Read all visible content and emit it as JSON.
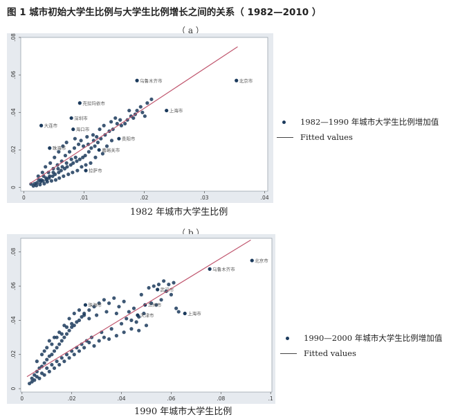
{
  "figure": {
    "title": "图 1  城市初始大学生比例与大学生比例增长之间的关系（ 1982—2010 ）",
    "panel_a_label": "（ a ）",
    "panel_b_label": "（ b ）"
  },
  "colors": {
    "points": "#1b3a5c",
    "fit": "#c0566e",
    "frame": "#9aa3ad",
    "plot_bg": "#ffffff",
    "outer_bg": "#e6eaef"
  },
  "chart_data": [
    {
      "type": "scatter",
      "xlabel": "1982 年城市大学生比例",
      "ylabel": "",
      "xlim": [
        -0.0005,
        0.0405
      ],
      "ylim": [
        -0.002,
        0.08
      ],
      "x_ticks": [
        "0",
        ".01",
        ".02",
        ".03",
        ".04"
      ],
      "x_tick_values": [
        0,
        0.01,
        0.02,
        0.03,
        0.04
      ],
      "y_ticks": [
        "0",
        ".02",
        ".04",
        ".06",
        ".08"
      ],
      "y_tick_values": [
        0,
        0.02,
        0.04,
        0.06,
        0.08
      ],
      "legend": {
        "position": "right",
        "entries": [
          "1982—1990 年城市大学生比例增加值",
          "Fitted values"
        ]
      },
      "fit_line": {
        "x": [
          0.001,
          0.0355
        ],
        "y": [
          0.002,
          0.075
        ]
      },
      "labeled_points": [
        {
          "label": "北京市",
          "x": 0.0353,
          "y": 0.057
        },
        {
          "label": "乌鲁木齐市",
          "x": 0.0188,
          "y": 0.057
        },
        {
          "label": "上海市",
          "x": 0.0237,
          "y": 0.041
        },
        {
          "label": "克拉玛依市",
          "x": 0.0093,
          "y": 0.045
        },
        {
          "label": "大连市",
          "x": 0.0029,
          "y": 0.033
        },
        {
          "label": "深圳市",
          "x": 0.0079,
          "y": 0.037
        },
        {
          "label": "海口市",
          "x": 0.0082,
          "y": 0.031
        },
        {
          "label": "珠海市",
          "x": 0.0043,
          "y": 0.021
        },
        {
          "label": "贵阳市",
          "x": 0.0158,
          "y": 0.026
        },
        {
          "label": "嘉峪关市",
          "x": 0.0125,
          "y": 0.02
        },
        {
          "label": "拉萨市",
          "x": 0.0103,
          "y": 0.009
        }
      ],
      "points": [
        [
          0.0194,
          0.043
        ],
        [
          0.0188,
          0.041
        ],
        [
          0.0185,
          0.039
        ],
        [
          0.0178,
          0.038
        ],
        [
          0.0172,
          0.036
        ],
        [
          0.0168,
          0.034
        ],
        [
          0.0162,
          0.033
        ],
        [
          0.0155,
          0.034
        ],
        [
          0.0148,
          0.031
        ],
        [
          0.0142,
          0.03
        ],
        [
          0.0135,
          0.028
        ],
        [
          0.0128,
          0.026
        ],
        [
          0.0123,
          0.024
        ],
        [
          0.0118,
          0.022
        ],
        [
          0.0112,
          0.021
        ],
        [
          0.0108,
          0.019
        ],
        [
          0.0102,
          0.017
        ],
        [
          0.0098,
          0.016
        ],
        [
          0.0093,
          0.015
        ],
        [
          0.0088,
          0.014
        ],
        [
          0.0082,
          0.013
        ],
        [
          0.0078,
          0.012
        ],
        [
          0.0072,
          0.011
        ],
        [
          0.0068,
          0.01
        ],
        [
          0.0062,
          0.009
        ],
        [
          0.0058,
          0.008
        ],
        [
          0.0052,
          0.007
        ],
        [
          0.0048,
          0.006
        ],
        [
          0.0042,
          0.005
        ],
        [
          0.0038,
          0.004
        ],
        [
          0.0032,
          0.0035
        ],
        [
          0.0028,
          0.003
        ],
        [
          0.0022,
          0.0025
        ],
        [
          0.0018,
          0.002
        ],
        [
          0.0012,
          0.0018
        ],
        [
          0.0024,
          0.006
        ],
        [
          0.0031,
          0.008
        ],
        [
          0.0036,
          0.011
        ],
        [
          0.0044,
          0.013
        ],
        [
          0.0051,
          0.016
        ],
        [
          0.0058,
          0.019
        ],
        [
          0.0065,
          0.022
        ],
        [
          0.0071,
          0.024
        ],
        [
          0.0085,
          0.026
        ],
        [
          0.0095,
          0.025
        ],
        [
          0.0105,
          0.027
        ],
        [
          0.0115,
          0.028
        ],
        [
          0.0126,
          0.031
        ],
        [
          0.0133,
          0.033
        ],
        [
          0.0145,
          0.035
        ],
        [
          0.0152,
          0.037
        ],
        [
          0.016,
          0.036
        ],
        [
          0.0175,
          0.041
        ],
        [
          0.0182,
          0.037
        ],
        [
          0.0197,
          0.04
        ],
        [
          0.0205,
          0.045
        ],
        [
          0.0212,
          0.047
        ],
        [
          0.0201,
          0.038
        ],
        [
          0.0138,
          0.022
        ],
        [
          0.0146,
          0.025
        ],
        [
          0.0131,
          0.018
        ],
        [
          0.0119,
          0.016
        ],
        [
          0.0111,
          0.013
        ],
        [
          0.0103,
          0.012
        ],
        [
          0.0096,
          0.011
        ],
        [
          0.0089,
          0.009
        ],
        [
          0.0081,
          0.008
        ],
        [
          0.0074,
          0.007
        ],
        [
          0.0066,
          0.006
        ],
        [
          0.0059,
          0.005
        ],
        [
          0.0053,
          0.004
        ],
        [
          0.0046,
          0.0035
        ],
        [
          0.0039,
          0.003
        ],
        [
          0.0034,
          0.002
        ],
        [
          0.0027,
          0.0015
        ],
        [
          0.0021,
          0.001
        ],
        [
          0.0016,
          0.0008
        ],
        [
          0.0025,
          0.004
        ],
        [
          0.0033,
          0.006
        ],
        [
          0.0041,
          0.008
        ],
        [
          0.0049,
          0.01
        ],
        [
          0.0056,
          0.012
        ],
        [
          0.0063,
          0.014
        ],
        [
          0.0069,
          0.017
        ],
        [
          0.0076,
          0.019
        ],
        [
          0.0084,
          0.021
        ],
        [
          0.0091,
          0.023
        ],
        [
          0.0099,
          0.022
        ],
        [
          0.0107,
          0.023
        ],
        [
          0.0116,
          0.025
        ],
        [
          0.0121,
          0.027
        ],
        [
          0.0086,
          0.016
        ],
        [
          0.0079,
          0.015
        ],
        [
          0.0071,
          0.013
        ],
        [
          0.0064,
          0.011
        ],
        [
          0.0057,
          0.01
        ],
        [
          0.0049,
          0.008
        ],
        [
          0.0043,
          0.006
        ],
        [
          0.0037,
          0.005
        ],
        [
          0.0029,
          0.004
        ]
      ]
    },
    {
      "type": "scatter",
      "xlabel": "1990 年城市大学生比例",
      "ylabel": "",
      "xlim": [
        -0.0005,
        0.1005
      ],
      "ylim": [
        -0.002,
        0.088
      ],
      "x_ticks": [
        "0",
        ".02",
        ".04",
        ".06",
        ".08",
        ".1"
      ],
      "x_tick_values": [
        0,
        0.02,
        0.04,
        0.06,
        0.08,
        0.1
      ],
      "y_ticks": [
        "0",
        ".02",
        ".04",
        ".06",
        ".08"
      ],
      "y_tick_values": [
        0,
        0.02,
        0.04,
        0.06,
        0.08
      ],
      "legend": {
        "position": "right",
        "entries": [
          "1990—2000 年城市大学生比例增加值",
          "Fitted values"
        ]
      },
      "fit_line": {
        "x": [
          0.002,
          0.092
        ],
        "y": [
          0.007,
          0.087
        ]
      },
      "labeled_points": [
        {
          "label": "北京市",
          "x": 0.0925,
          "y": 0.075
        },
        {
          "label": "乌鲁木齐市",
          "x": 0.0755,
          "y": 0.07
        },
        {
          "label": "上海市",
          "x": 0.0655,
          "y": 0.044
        },
        {
          "label": "兰州市",
          "x": 0.0495,
          "y": 0.049
        },
        {
          "label": "珠海市",
          "x": 0.0255,
          "y": 0.049
        },
        {
          "label": "武汉市",
          "x": 0.0545,
          "y": 0.058
        },
        {
          "label": "天津市",
          "x": 0.0465,
          "y": 0.043
        }
      ],
      "points": [
        [
          0.004,
          0.006
        ],
        [
          0.005,
          0.008
        ],
        [
          0.006,
          0.01
        ],
        [
          0.007,
          0.012
        ],
        [
          0.008,
          0.013
        ],
        [
          0.009,
          0.015
        ],
        [
          0.01,
          0.017
        ],
        [
          0.011,
          0.019
        ],
        [
          0.012,
          0.02
        ],
        [
          0.013,
          0.022
        ],
        [
          0.014,
          0.024
        ],
        [
          0.015,
          0.026
        ],
        [
          0.016,
          0.028
        ],
        [
          0.017,
          0.03
        ],
        [
          0.018,
          0.032
        ],
        [
          0.019,
          0.034
        ],
        [
          0.02,
          0.036
        ],
        [
          0.021,
          0.037
        ],
        [
          0.022,
          0.039
        ],
        [
          0.023,
          0.04
        ],
        [
          0.024,
          0.042
        ],
        [
          0.025,
          0.043
        ],
        [
          0.027,
          0.046
        ],
        [
          0.029,
          0.048
        ],
        [
          0.031,
          0.05
        ],
        [
          0.033,
          0.052
        ],
        [
          0.035,
          0.05
        ],
        [
          0.037,
          0.053
        ],
        [
          0.039,
          0.048
        ],
        [
          0.041,
          0.051
        ],
        [
          0.043,
          0.045
        ],
        [
          0.045,
          0.047
        ],
        [
          0.047,
          0.042
        ],
        [
          0.049,
          0.044
        ],
        [
          0.051,
          0.059
        ],
        [
          0.053,
          0.06
        ],
        [
          0.055,
          0.061
        ],
        [
          0.057,
          0.063
        ],
        [
          0.059,
          0.061
        ],
        [
          0.061,
          0.062
        ],
        [
          0.052,
          0.05
        ],
        [
          0.048,
          0.055
        ],
        [
          0.044,
          0.04
        ],
        [
          0.04,
          0.038
        ],
        [
          0.036,
          0.035
        ],
        [
          0.032,
          0.033
        ],
        [
          0.028,
          0.03
        ],
        [
          0.026,
          0.028
        ],
        [
          0.024,
          0.026
        ],
        [
          0.022,
          0.024
        ],
        [
          0.02,
          0.022
        ],
        [
          0.018,
          0.02
        ],
        [
          0.016,
          0.018
        ],
        [
          0.014,
          0.016
        ],
        [
          0.012,
          0.014
        ],
        [
          0.01,
          0.012
        ],
        [
          0.008,
          0.009
        ],
        [
          0.006,
          0.007
        ],
        [
          0.005,
          0.005
        ],
        [
          0.004,
          0.004
        ],
        [
          0.003,
          0.003
        ],
        [
          0.007,
          0.006
        ],
        [
          0.009,
          0.008
        ],
        [
          0.011,
          0.01
        ],
        [
          0.013,
          0.012
        ],
        [
          0.015,
          0.014
        ],
        [
          0.017,
          0.016
        ],
        [
          0.019,
          0.018
        ],
        [
          0.021,
          0.02
        ],
        [
          0.023,
          0.022
        ],
        [
          0.025,
          0.024
        ],
        [
          0.027,
          0.027
        ],
        [
          0.029,
          0.025
        ],
        [
          0.031,
          0.028
        ],
        [
          0.033,
          0.03
        ],
        [
          0.035,
          0.029
        ],
        [
          0.038,
          0.031
        ],
        [
          0.041,
          0.033
        ],
        [
          0.044,
          0.035
        ],
        [
          0.047,
          0.034
        ],
        [
          0.05,
          0.037
        ],
        [
          0.008,
          0.02
        ],
        [
          0.01,
          0.024
        ],
        [
          0.012,
          0.026
        ],
        [
          0.014,
          0.03
        ],
        [
          0.016,
          0.032
        ],
        [
          0.018,
          0.036
        ],
        [
          0.02,
          0.038
        ],
        [
          0.006,
          0.016
        ],
        [
          0.009,
          0.022
        ],
        [
          0.011,
          0.028
        ],
        [
          0.013,
          0.03
        ],
        [
          0.015,
          0.033
        ],
        [
          0.017,
          0.037
        ],
        [
          0.019,
          0.041
        ],
        [
          0.021,
          0.044
        ],
        [
          0.023,
          0.046
        ],
        [
          0.025,
          0.044
        ],
        [
          0.027,
          0.041
        ],
        [
          0.03,
          0.043
        ],
        [
          0.034,
          0.045
        ],
        [
          0.038,
          0.044
        ],
        [
          0.042,
          0.041
        ],
        [
          0.046,
          0.039
        ],
        [
          0.06,
          0.055
        ],
        [
          0.058,
          0.057
        ],
        [
          0.056,
          0.052
        ],
        [
          0.054,
          0.049
        ],
        [
          0.062,
          0.047
        ],
        [
          0.063,
          0.045
        ]
      ]
    }
  ]
}
